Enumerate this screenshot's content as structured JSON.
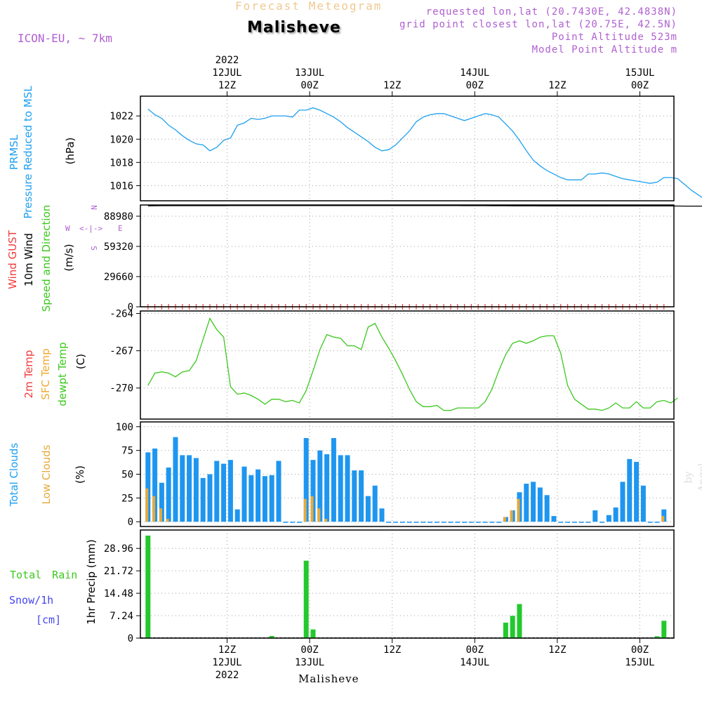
{
  "header": {
    "product_title": "Forecast Meteogram",
    "location_title": "Malisheve",
    "model": "ICON-EU, ~ 7km",
    "requested": "requested lon,lat (20.7430E, 42.4838N)",
    "grid_point": "grid point closest lon,lat (20.75E, 42.5N)",
    "point_altitude": "Point Altitude 523m",
    "model_altitude": "Model Point Altitude m",
    "credit": "by Angel",
    "bottom_location": "Malisheve"
  },
  "colors": {
    "pressure": "#1ea0f0",
    "temp_2m": "#f03c3c",
    "sfc_temp": "#f0a830",
    "dewpt": "#3cc81e",
    "total_clouds": "#1e96f0",
    "low_clouds": "#e6aa3c",
    "rain": "#23c82d",
    "snow": "#4646f0",
    "wind_gust": "#f03c3c",
    "wind_dir": "#b060d0",
    "label_purple": "#b060d0"
  },
  "time_axis": {
    "top": [
      {
        "t": 12,
        "lines": [
          "2022",
          "12JUL",
          "12Z"
        ]
      },
      {
        "t": 24,
        "lines": [
          "13JUL",
          "00Z"
        ]
      },
      {
        "t": 36,
        "lines": [
          "12Z"
        ]
      },
      {
        "t": 48,
        "lines": [
          "14JUL",
          "00Z"
        ]
      },
      {
        "t": 60,
        "lines": [
          "12Z"
        ]
      },
      {
        "t": 72,
        "lines": [
          "15JUL",
          "00Z"
        ]
      }
    ],
    "bottom": [
      {
        "t": 12,
        "lines": [
          "12Z",
          "12JUL",
          "2022"
        ]
      },
      {
        "t": 24,
        "lines": [
          "00Z",
          "13JUL"
        ]
      },
      {
        "t": 36,
        "lines": [
          "12Z"
        ]
      },
      {
        "t": 48,
        "lines": [
          "00Z",
          "14JUL"
        ]
      },
      {
        "t": 60,
        "lines": [
          "12Z"
        ]
      },
      {
        "t": 72,
        "lines": [
          "00Z",
          "15JUL"
        ]
      }
    ]
  },
  "chart_data": [
    {
      "type": "line",
      "panel": "pressure",
      "ylabel": [
        "PRMSL",
        "Pressure Reduced to MSL",
        "(hPa)"
      ],
      "yticks": [
        1016,
        1018,
        1020,
        1022
      ],
      "ylim": [
        1014.7,
        1023.7
      ],
      "grid": true,
      "series": [
        {
          "name": "PRMSL",
          "values": [
            1022.6,
            1022.1,
            1021.8,
            1021.2,
            1020.8,
            1020.3,
            1019.9,
            1019.6,
            1019.5,
            1019.0,
            1019.3,
            1019.9,
            1020.1,
            1021.2,
            1021.4,
            1021.8,
            1021.7,
            1021.8,
            1022.0,
            1022.0,
            1022.0,
            1021.9,
            1022.5,
            1022.5,
            1022.7,
            1022.5,
            1022.2,
            1021.9,
            1021.5,
            1021.0,
            1020.6,
            1020.2,
            1019.8,
            1019.3,
            1019.0,
            1019.1,
            1019.5,
            1020.1,
            1020.7,
            1021.5,
            1021.9,
            1022.1,
            1022.2,
            1022.2,
            1022.0,
            1021.8,
            1021.6,
            1021.8,
            1022.0,
            1022.2,
            1022.1,
            1021.9,
            1021.3,
            1020.7,
            1019.9,
            1019.0,
            1018.2,
            1017.7,
            1017.3,
            1017.0,
            1016.7,
            1016.5,
            1016.5,
            1016.5,
            1017.0,
            1017.0,
            1017.1,
            1017.0,
            1016.8,
            1016.6,
            1016.5,
            1016.4,
            1016.3,
            1016.2,
            1016.3,
            1016.7,
            1016.7,
            1016.6,
            1016.1,
            1015.6,
            1015.2,
            1014.8
          ]
        }
      ]
    },
    {
      "type": "line",
      "panel": "wind",
      "ylabel": [
        "Wind GUST",
        "10m Wind",
        "Speed and Direction",
        "(m/s)"
      ],
      "compass": {
        "n": "N",
        "s": "S",
        "e": "E",
        "w": "W",
        "arrows": "<-|->"
      },
      "yticks": [
        0,
        29660,
        59320,
        88980
      ],
      "ylim": [
        0,
        100000
      ],
      "grid": true,
      "series": [
        {
          "name": "10m Wind",
          "values": [
            99200,
            99250,
            99300,
            99300,
            99300,
            99300,
            99300,
            99300,
            99300,
            99300,
            99300,
            99300,
            99350,
            99350,
            99350,
            99400,
            99400,
            99400,
            99400,
            99400,
            99400,
            99400,
            99400,
            99400,
            99400,
            99400,
            99400,
            99400,
            99400,
            99400,
            99400,
            99400,
            99400,
            99400,
            99400,
            99400,
            99400,
            99350,
            99350,
            99350,
            99350,
            99350,
            99350,
            99350,
            99350,
            99350,
            99300,
            99300,
            99300,
            99300,
            99250,
            99250,
            99250,
            99200,
            99200,
            99150,
            99150,
            99100,
            99100,
            99100,
            99100,
            99100,
            99100,
            99100,
            99100,
            99100,
            99100,
            99050,
            99000,
            99000,
            99000,
            99000,
            99000,
            99000,
            99000,
            99000,
            99000,
            98950,
            98900,
            98900,
            98900,
            98900
          ]
        },
        {
          "name": "Wind GUST",
          "values": [
            0
          ]
        }
      ]
    },
    {
      "type": "line",
      "panel": "temperature",
      "ylabel": [
        "2m Temp",
        "SFC Temp",
        "dewpt Temp",
        "(C)"
      ],
      "yticks": [
        -270,
        -267,
        -264
      ],
      "ylim": [
        -272.5,
        -263.8
      ],
      "grid": true,
      "series": [
        {
          "name": "dewpt Temp",
          "values": [
            -269.8,
            -268.8,
            -268.7,
            -268.8,
            -269.1,
            -268.7,
            -268.6,
            -267.8,
            -266.1,
            -264.4,
            -265.3,
            -265.9,
            -269.9,
            -270.5,
            -270.4,
            -270.6,
            -270.9,
            -271.3,
            -270.9,
            -270.9,
            -271.1,
            -271.0,
            -271.2,
            -270.2,
            -268.6,
            -266.9,
            -265.7,
            -265.9,
            -266.0,
            -266.6,
            -266.6,
            -266.9,
            -265.1,
            -264.8,
            -265.9,
            -266.8,
            -267.8,
            -268.9,
            -270.1,
            -271.1,
            -271.5,
            -271.5,
            -271.4,
            -271.8,
            -271.8,
            -271.6,
            -271.6,
            -271.6,
            -271.6,
            -271.1,
            -270.1,
            -268.6,
            -267.3,
            -266.4,
            -266.2,
            -266.4,
            -266.2,
            -265.9,
            -265.8,
            -265.8,
            -267.2,
            -269.8,
            -270.9,
            -271.3,
            -271.7,
            -271.7,
            -271.8,
            -271.6,
            -271.2,
            -271.6,
            -271.6,
            -271.1,
            -271.6,
            -271.6,
            -271.1,
            -271.0,
            -271.2,
            -270.8
          ]
        }
      ]
    },
    {
      "type": "bar",
      "panel": "clouds",
      "ylabel": [
        "Total Clouds",
        "Low Clouds",
        "(%)"
      ],
      "yticks": [
        0,
        25,
        50,
        75,
        100
      ],
      "ylim": [
        -5,
        105
      ],
      "grid": true,
      "series": [
        {
          "name": "Total Clouds",
          "values": [
            73,
            77,
            41,
            57,
            89,
            70,
            70,
            67,
            46,
            50,
            64,
            61,
            65,
            13,
            58,
            49,
            55,
            48,
            49,
            64,
            0,
            0,
            0,
            88,
            65,
            75,
            71,
            88,
            70,
            70,
            54,
            54,
            27,
            38,
            14,
            0,
            0,
            0,
            0,
            0,
            0,
            0,
            0,
            0,
            0,
            0,
            0,
            0,
            0,
            0,
            0,
            0,
            5,
            12,
            31,
            40,
            42,
            36,
            28,
            6,
            0,
            0,
            0,
            0,
            0,
            12,
            0,
            7,
            15,
            42,
            66,
            63,
            38,
            0,
            0,
            13
          ]
        },
        {
          "name": "Low Clouds",
          "values": [
            35,
            27,
            14,
            3,
            0,
            0,
            0,
            0,
            0,
            0,
            0,
            0,
            0,
            0,
            0,
            0,
            0,
            0,
            0,
            0,
            0,
            0,
            0,
            24,
            27,
            14,
            3,
            0,
            0,
            0,
            0,
            0,
            0,
            0,
            0,
            0,
            0,
            0,
            0,
            0,
            0,
            0,
            0,
            0,
            0,
            0,
            0,
            0,
            0,
            0,
            0,
            0,
            5,
            12,
            24,
            0,
            0,
            0,
            0,
            0,
            0,
            0,
            0,
            0,
            0,
            0,
            0,
            0,
            0,
            0,
            0,
            0,
            0,
            0,
            0,
            6
          ]
        }
      ]
    },
    {
      "type": "bar",
      "panel": "precipitation",
      "ylabel": [
        "1hr Precip (mm)"
      ],
      "legend": {
        "rain": "Total Rain",
        "snow_top": "Snow/1h",
        "snow_unit": "[cm]"
      },
      "yticks": [
        0,
        7.24,
        14.48,
        21.72,
        28.96
      ],
      "ylim": [
        0,
        34.9
      ],
      "grid": true,
      "series": [
        {
          "name": "Total Rain",
          "values": [
            33.1,
            0,
            0,
            0,
            0,
            0,
            0,
            0,
            0,
            0,
            0,
            0,
            0,
            0,
            0,
            0,
            0,
            0,
            0.7,
            0,
            0,
            0,
            0,
            25.0,
            2.8,
            0,
            0,
            0,
            0,
            0,
            0,
            0,
            0,
            0,
            0,
            0,
            0,
            0,
            0,
            0,
            0,
            0,
            0,
            0,
            0,
            0,
            0,
            0,
            0,
            0,
            0,
            0,
            5.0,
            7.2,
            11.0,
            0,
            0,
            0,
            0,
            0,
            0,
            0,
            0,
            0,
            0,
            0,
            0,
            0,
            0,
            0,
            0,
            0,
            0,
            0,
            0.6,
            5.6
          ]
        }
      ]
    }
  ]
}
